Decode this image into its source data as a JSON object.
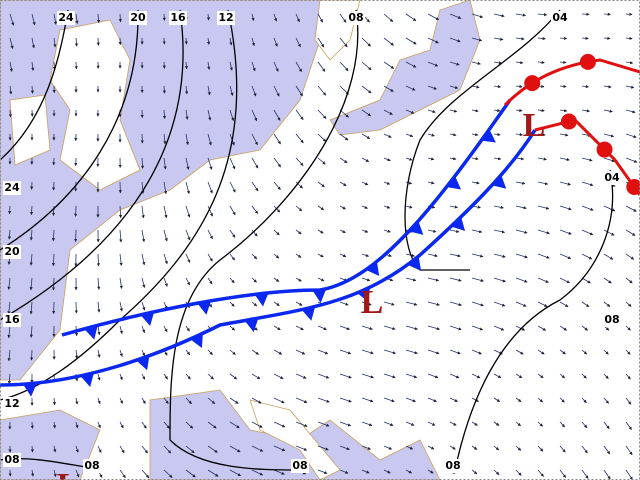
{
  "isobar_labels": [
    "24",
    "20",
    "16",
    "12",
    "08",
    "04",
    "24",
    "20",
    "16",
    "12",
    "08",
    "08",
    "08",
    "08",
    "04",
    "08"
  ],
  "lows": [
    "L",
    "L",
    "L"
  ]
}
